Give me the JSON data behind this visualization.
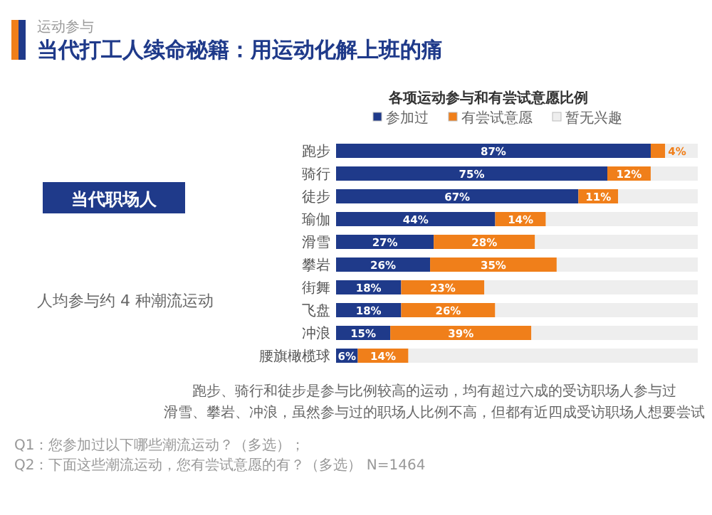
{
  "chart_data": {
    "type": "bar",
    "orientation": "horizontal",
    "stacked": true,
    "title": "当代打工人续命秘籍：用运动化解上班的痛",
    "subtitle": "运动参与",
    "xlabel": "各项运动参与和有尝试意愿比例",
    "categories": [
      "跑步",
      "骑行",
      "徒步",
      "瑜伽",
      "滑雪",
      "攀岩",
      "街舞",
      "飞盘",
      "冲浪",
      "腰旗橄榄球"
    ],
    "series": [
      {
        "name": "参加过",
        "color": "#1f3a8a",
        "values": [
          87,
          75,
          67,
          44,
          27,
          26,
          18,
          18,
          15,
          6
        ],
        "value_labels": [
          "87%",
          "75%",
          "67%",
          "44%",
          "27%",
          "26%",
          "18%",
          "18%",
          "15%",
          "6%"
        ]
      },
      {
        "name": "有尝试意愿",
        "color": "#f07f1a",
        "values": [
          4,
          12,
          11,
          14,
          28,
          35,
          23,
          26,
          39,
          14
        ],
        "value_labels": [
          "4%",
          "12%",
          "11%",
          "14%",
          "28%",
          "35%",
          "23%",
          "26%",
          "39%",
          "14%"
        ]
      },
      {
        "name": "暂无兴趣",
        "color": "#eeeeee",
        "values": [
          9,
          13,
          22,
          42,
          45,
          39,
          59,
          56,
          46,
          80
        ]
      }
    ],
    "legend": "top",
    "annotations": [
      "当代职场人",
      "人均参与约 4 种潮流运动",
      "跑步、骑行和徒步是参与比例较高的运动，均有超过六成的受访职场人参与过",
      "滑雪、攀岩、冲浪，虽然参与过的职场人比例不高，但都有近四成受访职场人想要尝试",
      "Q1：您参加过以下哪些潮流运动？（多选）；Q2：下面这些潮流运动，您有尝试意愿的有？（多选） N=1464"
    ]
  }
}
